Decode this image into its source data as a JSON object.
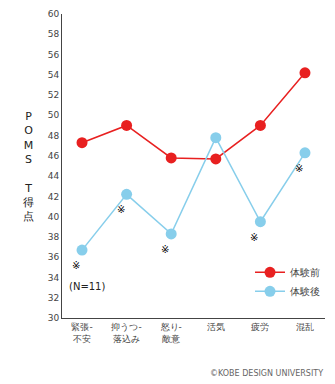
{
  "chart_data": {
    "type": "line",
    "categories": [
      "緊張-\n不安",
      "抑うつ-\n落込み",
      "怒り-\n敵意",
      "活気",
      "疲労",
      "混乱"
    ],
    "series": [
      {
        "name": "体験前",
        "color": "#e82020",
        "values": [
          47.3,
          49.0,
          45.8,
          45.7,
          49.0,
          54.2
        ]
      },
      {
        "name": "体験後",
        "color": "#87ceeb",
        "values": [
          36.7,
          42.2,
          38.3,
          47.8,
          39.5,
          46.3
        ]
      }
    ],
    "marker": "circle",
    "ylabel": "P\nO\nM\nS\n\nT\n得\n点",
    "ylim": [
      30,
      60
    ],
    "yticks": [
      30,
      32,
      34,
      36,
      38,
      40,
      42,
      44,
      46,
      48,
      50,
      52,
      54,
      56,
      58,
      60
    ],
    "grid": false,
    "legend": "lower right",
    "annotations": [
      {
        "text": "※",
        "category": "緊張-\n不安",
        "series": "体験後"
      },
      {
        "text": "※",
        "category": "抑うつ-\n落込み",
        "series": "体験後"
      },
      {
        "text": "※",
        "category": "怒り-\n敵意",
        "series": "体験後"
      },
      {
        "text": "※",
        "category": "疲労",
        "series": "体験後"
      },
      {
        "text": "※",
        "category": "混乱",
        "series": "体験後"
      }
    ],
    "note": "(N=11)",
    "source": "©KOBE DESIGN UNIVERSITY"
  }
}
